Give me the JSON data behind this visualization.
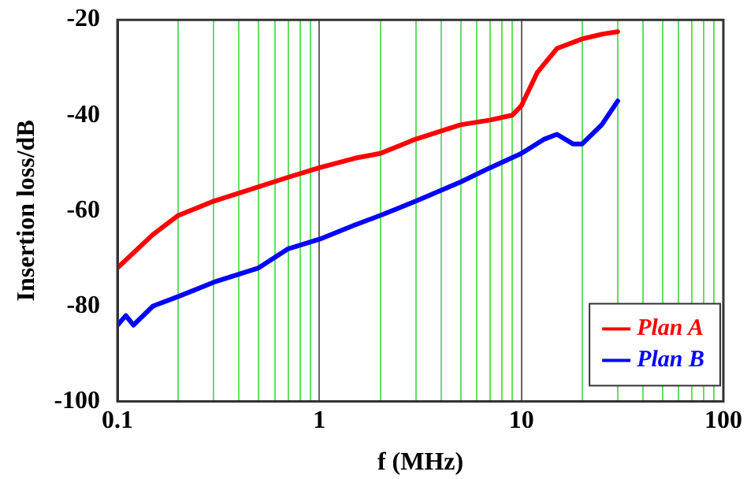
{
  "chart_data": {
    "type": "line",
    "xlabel": "f (MHz)",
    "ylabel": "Insertion loss/dB",
    "log": "x",
    "grid": "x",
    "legend": "bottom right",
    "marker": "none",
    "line_style": "solid",
    "xlim": [
      0.1,
      100
    ],
    "ylim": [
      -100,
      -20
    ],
    "xticks": [
      0.1,
      {
        "value": 0.2,
        "label": null
      },
      {
        "value": 0.3,
        "label": null
      },
      {
        "value": 0.4,
        "label": null
      },
      {
        "value": 0.5,
        "label": null
      },
      {
        "value": 0.6,
        "label": null
      },
      {
        "value": 0.7,
        "label": null
      },
      {
        "value": 0.8,
        "label": null
      },
      {
        "value": 0.9,
        "label": null
      },
      1,
      {
        "value": 2,
        "label": null
      },
      {
        "value": 3,
        "label": null
      },
      {
        "value": 4,
        "label": null
      },
      {
        "value": 5,
        "label": null
      },
      {
        "value": 6,
        "label": null
      },
      {
        "value": 7,
        "label": null
      },
      {
        "value": 8,
        "label": null
      },
      {
        "value": 9,
        "label": null
      },
      10,
      {
        "value": 20,
        "label": null
      },
      {
        "value": 30,
        "label": null
      },
      {
        "value": 40,
        "label": null
      },
      {
        "value": 50,
        "label": null
      },
      {
        "value": 60,
        "label": null
      },
      {
        "value": 70,
        "label": null
      },
      {
        "value": 80,
        "label": null
      },
      {
        "value": 90,
        "label": null
      },
      100
    ],
    "yticks": [
      -20,
      -40,
      -60,
      -80,
      -100
    ],
    "series": [
      {
        "name": "Plan A",
        "color": "#ff0000",
        "x": [
          0.1,
          0.15,
          0.2,
          0.3,
          0.5,
          0.7,
          1,
          1.5,
          2,
          3,
          5,
          7,
          9,
          10,
          12,
          15,
          20,
          25,
          30
        ],
        "values": [
          -72,
          -65,
          -61,
          -58,
          -55,
          -53,
          -51,
          -49,
          -48,
          -45,
          -42,
          -41,
          -40,
          -38,
          -31,
          -26,
          -24,
          -23,
          -22.5
        ]
      },
      {
        "name": "Plan B",
        "color": "#0000ff",
        "x": [
          0.1,
          0.11,
          0.12,
          0.15,
          0.2,
          0.3,
          0.5,
          0.7,
          1,
          1.5,
          2,
          3,
          5,
          7,
          10,
          13,
          15,
          18,
          20,
          25,
          30
        ],
        "values": [
          -84,
          -82,
          -84,
          -80,
          -78,
          -75,
          -72,
          -68,
          -66,
          -63,
          -61,
          -58,
          -54,
          -51,
          -48,
          -45,
          -44,
          -46,
          -46,
          -42,
          -37
        ]
      }
    ]
  }
}
